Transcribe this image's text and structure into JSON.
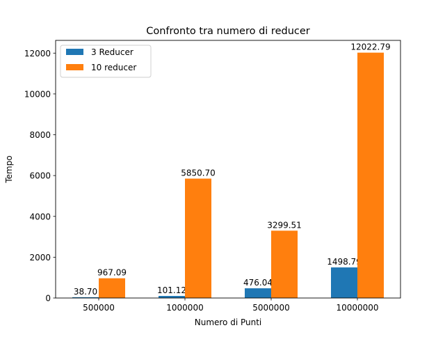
{
  "chart_data": {
    "type": "bar",
    "title": "Confronto tra numero di reducer",
    "xlabel": "Numero di Punti",
    "ylabel": "Tempo",
    "categories": [
      "500000",
      "1000000",
      "5000000",
      "10000000"
    ],
    "series": [
      {
        "name": "3 Reducer",
        "color": "#1f77b4",
        "values": [
          38.7,
          101.12,
          476.04,
          1498.79
        ],
        "labels": [
          "38.70",
          "101.12",
          "476.04",
          "1498.79"
        ]
      },
      {
        "name": "10 reducer",
        "color": "#ff7f0e",
        "values": [
          967.09,
          5850.7,
          3299.51,
          12022.79
        ],
        "labels": [
          "967.09",
          "5850.70",
          "3299.51",
          "12022.79"
        ]
      }
    ],
    "ylim": [
      0,
      12623.93
    ],
    "yticks": [
      0,
      2000,
      4000,
      6000,
      8000,
      10000,
      12000
    ],
    "ytick_labels": [
      "0",
      "2000",
      "4000",
      "6000",
      "8000",
      "10000",
      "12000"
    ],
    "grid": false,
    "legend_position": "upper-left"
  }
}
